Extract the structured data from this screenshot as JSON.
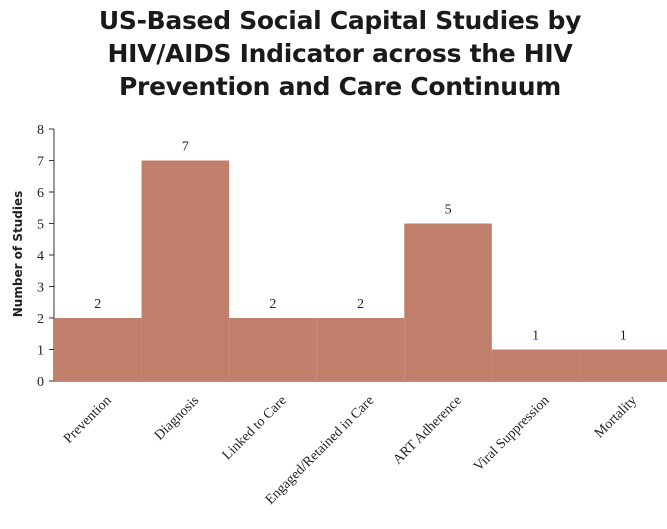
{
  "chart_data": {
    "type": "bar",
    "title_lines": [
      "US-Based Social Capital Studies by",
      "HIV/AIDS Indicator across the HIV",
      "Prevention and Care Continuum"
    ],
    "ylabel": "Number of Studies",
    "xlabel": "",
    "categories": [
      "Prevention",
      "Diagnosis",
      "Linked to Care",
      "Engaged/Retained in Care",
      "ART Adherence",
      "Viral Suppression",
      "Mortality"
    ],
    "values": [
      2,
      7,
      2,
      2,
      5,
      1,
      1
    ],
    "data_labels": [
      "2",
      "7",
      "2",
      "2",
      "5",
      "1",
      "1"
    ],
    "ylim": [
      0,
      8
    ],
    "yticks": [
      "0",
      "1",
      "2",
      "3",
      "4",
      "5",
      "6",
      "7",
      "8"
    ],
    "grid": false,
    "legend": "none",
    "bar_color": "#c07f6a"
  }
}
